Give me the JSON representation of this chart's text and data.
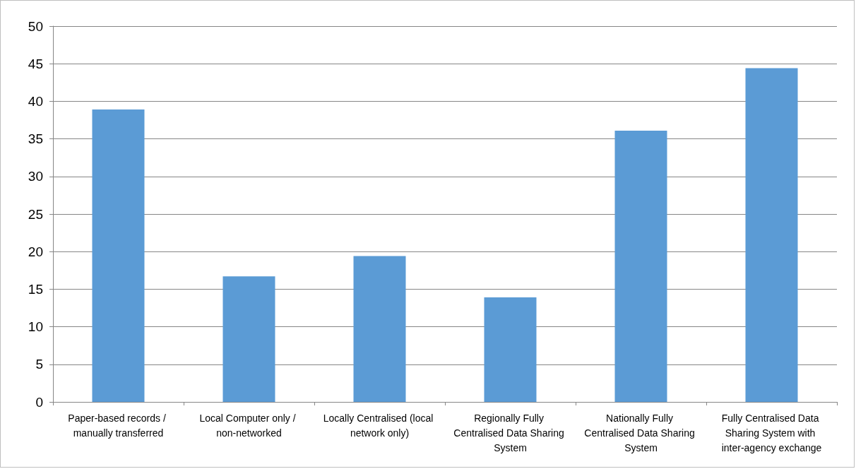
{
  "chart_data": {
    "type": "bar",
    "categories": [
      "Paper-based records / manually transferred",
      "Local Computer only / non-networked",
      "Locally Centralised (local network only)",
      "Regionally Fully Centralised Data Sharing System",
      "Nationally Fully Centralised Data Sharing System",
      "Fully Centralised Data Sharing System with inter-agency exchange"
    ],
    "values": [
      38.9,
      16.7,
      19.4,
      13.9,
      36.1,
      44.4
    ],
    "color": "#5b9bd5",
    "ylim": [
      0,
      50
    ],
    "yticks": [
      0,
      5,
      10,
      15,
      20,
      25,
      30,
      35,
      40,
      45,
      50
    ],
    "grid": "y"
  }
}
